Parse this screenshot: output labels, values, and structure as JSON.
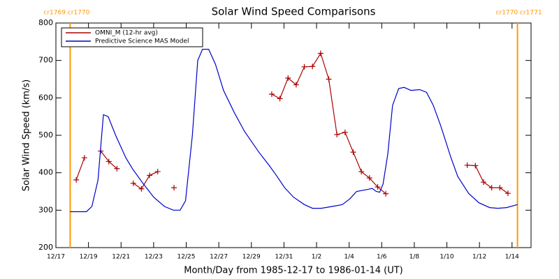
{
  "chart_data": {
    "type": "line",
    "title": "Solar Wind Speed Comparisons",
    "x_label": "Month/Day from 1985-12-17 to 1986-01-14 (UT)",
    "y_label": "Solar Wind Speed (km/s)",
    "xlim": [
      "1985-12-17T00:00",
      "1986-01-15T04:00"
    ],
    "xticks": [
      {
        "value": "1985-12-17T00:00",
        "label": "12/17"
      },
      {
        "value": "1985-12-19T00:00",
        "label": "12/19"
      },
      {
        "value": "1985-12-21T00:00",
        "label": "12/21"
      },
      {
        "value": "1985-12-23T00:00",
        "label": "12/23"
      },
      {
        "value": "1985-12-25T00:00",
        "label": "12/25"
      },
      {
        "value": "1985-12-27T00:00",
        "label": "12/27"
      },
      {
        "value": "1985-12-29T00:00",
        "label": "12/29"
      },
      {
        "value": "1985-12-31T00:00",
        "label": "12/31"
      },
      {
        "value": "1986-01-02T00:00",
        "label": "1/2"
      },
      {
        "value": "1986-01-04T00:00",
        "label": "1/4"
      },
      {
        "value": "1986-01-06T00:00",
        "label": "1/6"
      },
      {
        "value": "1986-01-08T00:00",
        "label": "1/8"
      },
      {
        "value": "1986-01-10T00:00",
        "label": "1/10"
      },
      {
        "value": "1986-01-12T00:00",
        "label": "1/12"
      },
      {
        "value": "1986-01-14T00:00",
        "label": "1/14"
      }
    ],
    "ylim": [
      200,
      800
    ],
    "yticks": [
      200,
      300,
      400,
      500,
      600,
      700,
      800
    ],
    "legend": "upper left",
    "annotations": [
      {
        "label": "cr1769 cr1770",
        "x": "1985-12-17T21:00",
        "color": "#ff9900"
      },
      {
        "label": "cr1770 cr1771",
        "x": "1986-01-14T08:00",
        "color": "#ff9900"
      }
    ],
    "series": [
      {
        "name": "OMNI_M (12-hr avg)",
        "color": "#aa0000",
        "marker": "+",
        "x": [
          "1985-12-18T06:00",
          "1985-12-18T18:00",
          null,
          "1985-12-19T18:00",
          "1985-12-20T06:00",
          "1985-12-20T18:00",
          null,
          "1985-12-21T18:00",
          "1985-12-22T06:00",
          "1985-12-22T18:00",
          "1985-12-23T06:00",
          null,
          "1985-12-24T06:00",
          null,
          "1985-12-30T06:00",
          "1985-12-30T18:00",
          "1985-12-31T06:00",
          "1985-12-31T18:00",
          "1986-01-01T06:00",
          "1986-01-01T18:00",
          "1986-01-02T06:00",
          "1986-01-02T18:00",
          "1986-01-03T06:00",
          "1986-01-03T18:00",
          "1986-01-04T06:00",
          "1986-01-04T18:00",
          "1986-01-05T06:00",
          "1986-01-05T18:00",
          "1986-01-06T06:00",
          null,
          "1986-01-11T06:00",
          "1986-01-11T18:00",
          "1986-01-12T06:00",
          "1986-01-12T18:00",
          "1986-01-13T06:00",
          "1986-01-13T18:00"
        ],
        "values": [
          381,
          440,
          null,
          458,
          430,
          411,
          null,
          372,
          357,
          393,
          403,
          null,
          360,
          null,
          610,
          598,
          653,
          635,
          683,
          684,
          719,
          650,
          502,
          508,
          455,
          403,
          386,
          362,
          344,
          null,
          420,
          419,
          375,
          360,
          360,
          345
        ]
      },
      {
        "name": "Predictive Science MAS Model",
        "color": "#0000cc",
        "x": [
          "1985-12-17T21:00",
          "1985-12-18T21:00",
          "1985-12-19T05:00",
          "1985-12-19T14:00",
          "1985-12-19T22:00",
          "1985-12-20T05:00",
          "1985-12-20T16:00",
          "1985-12-21T07:00",
          "1985-12-21T17:00",
          "1985-12-22T09:00",
          "1985-12-23T00:00",
          "1985-12-23T16:00",
          "1985-12-24T05:00",
          "1985-12-24T15:00",
          "1985-12-24T23:00",
          "1985-12-25T09:00",
          "1985-12-25T17:00",
          "1985-12-26T00:00",
          "1985-12-26T09:00",
          "1985-12-26T19:00",
          "1985-12-27T07:00",
          "1985-12-27T23:00",
          "1985-12-28T14:00",
          "1985-12-29T11:00",
          "1985-12-30T02:00",
          "1985-12-30T12:00",
          "1985-12-31T01:00",
          "1985-12-31T14:00",
          "1986-01-01T06:00",
          "1986-01-01T18:00",
          "1986-01-02T07:00",
          "1986-01-02T23:00",
          "1986-01-03T14:00",
          "1986-01-04T01:00",
          "1986-01-04T11:00",
          "1986-01-05T02:00",
          "1986-01-05T10:00",
          "1986-01-05T16:00",
          "1986-01-05T21:00",
          "1986-01-06T02:00",
          "1986-01-06T09:00",
          "1986-01-06T16:00",
          "1986-01-07T01:00",
          "1986-01-07T09:00",
          "1986-01-07T19:00",
          "1986-01-08T08:00",
          "1986-01-08T18:00",
          "1986-01-09T04:00",
          "1986-01-09T15:00",
          "1986-01-10T06:00",
          "1986-01-10T16:00",
          "1986-01-11T08:00",
          "1986-01-11T23:00",
          "1986-01-12T15:00",
          "1986-01-13T03:00",
          "1986-01-13T16:00",
          "1986-01-14T08:00"
        ],
        "values": [
          296,
          296,
          310,
          380,
          555,
          550,
          500,
          440,
          410,
          370,
          335,
          310,
          300,
          300,
          325,
          500,
          700,
          730,
          730,
          690,
          620,
          560,
          510,
          455,
          420,
          395,
          360,
          335,
          315,
          305,
          305,
          310,
          315,
          330,
          350,
          355,
          358,
          350,
          348,
          370,
          450,
          580,
          625,
          628,
          620,
          622,
          615,
          580,
          525,
          440,
          390,
          345,
          320,
          307,
          305,
          307,
          315
        ]
      }
    ]
  }
}
